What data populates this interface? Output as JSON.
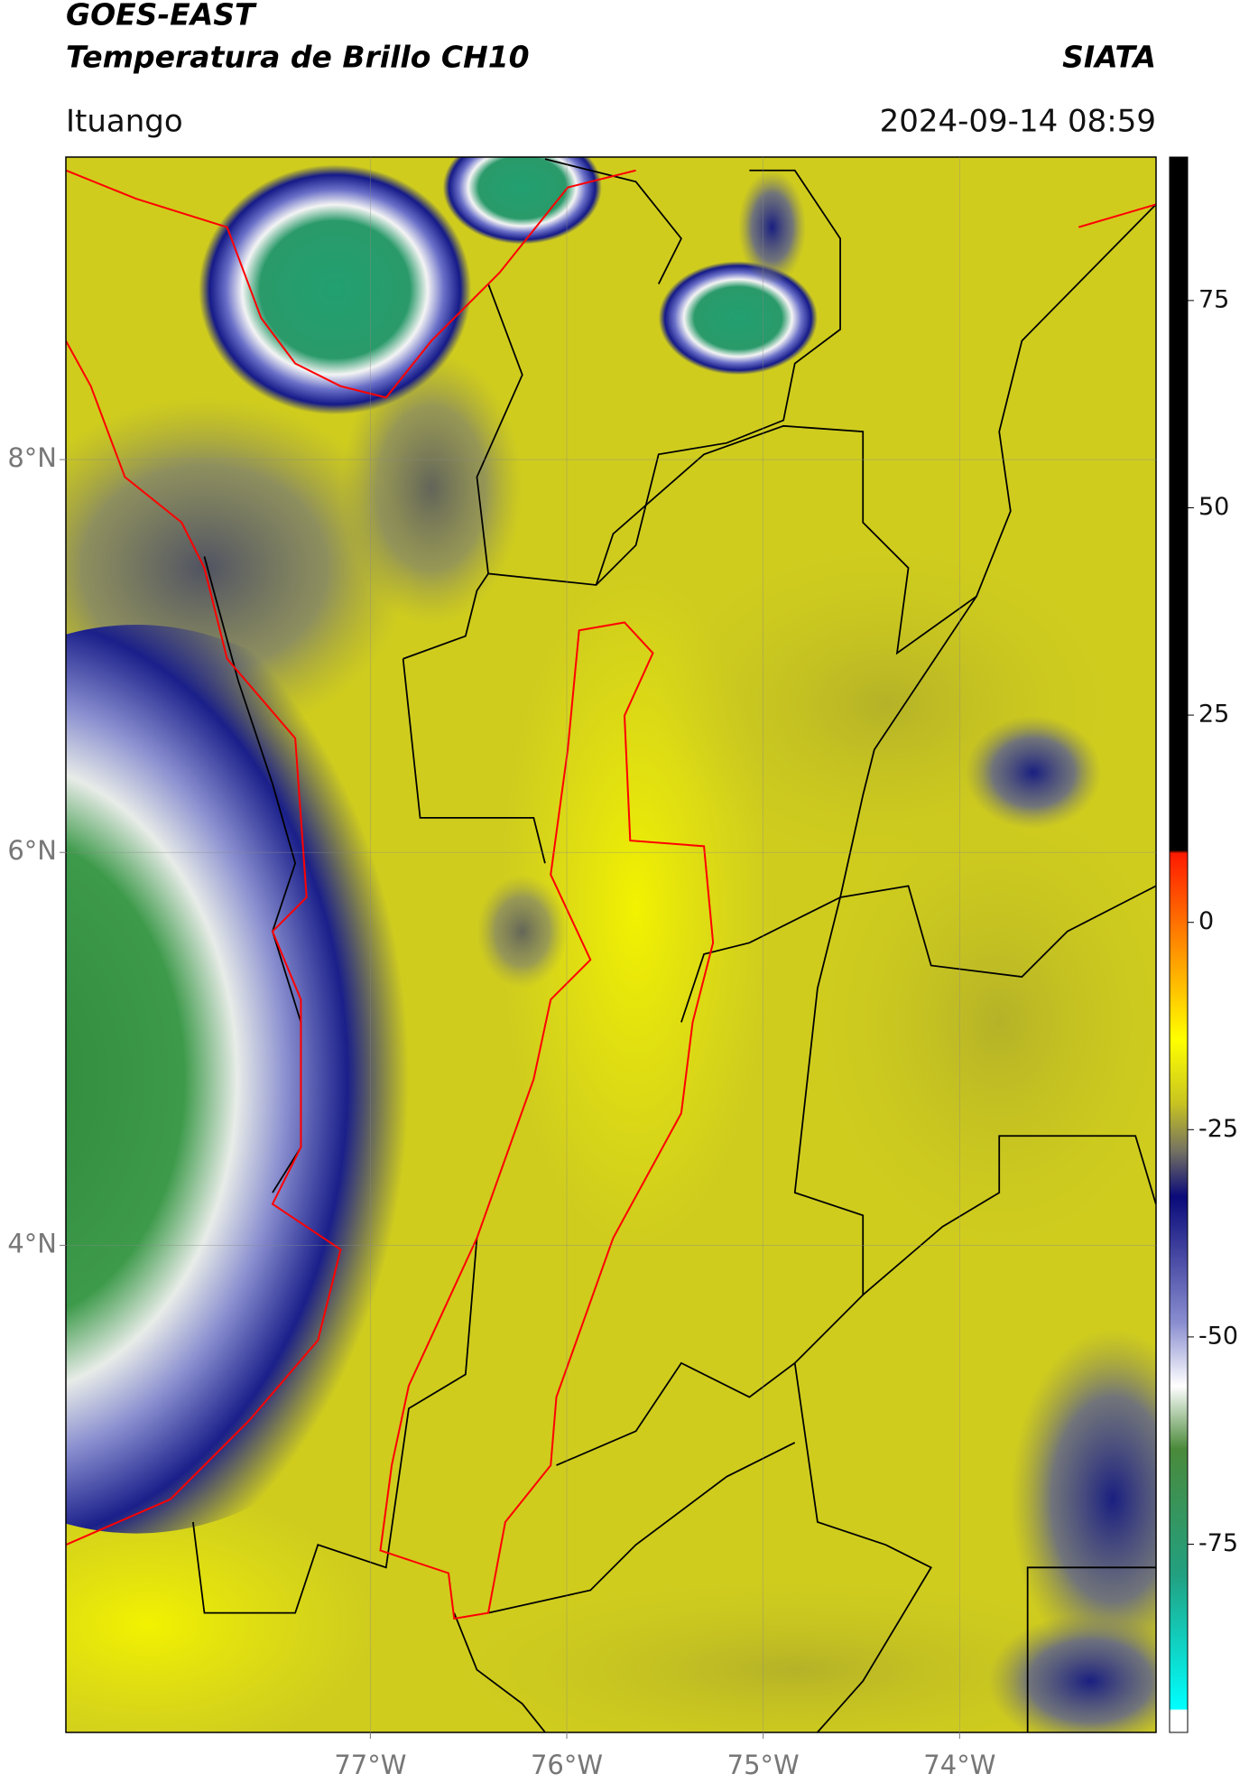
{
  "header": {
    "satellite": "GOES-EAST",
    "product": "Temperatura de Brillo CH10",
    "organization": "SIATA",
    "region": "Ituango",
    "timestamp": "2024-09-14 08:59"
  },
  "map": {
    "xlim": [
      -78.55,
      -73.0
    ],
    "ylim": [
      1.52,
      9.54
    ],
    "xticks": [
      {
        "value": -77,
        "label": "77°W"
      },
      {
        "value": -76,
        "label": "76°W"
      },
      {
        "value": -75,
        "label": "75°W"
      },
      {
        "value": -74,
        "label": "74°W"
      }
    ],
    "yticks": [
      {
        "value": 4,
        "label": "4°N"
      },
      {
        "value": 6,
        "label": "6°N"
      },
      {
        "value": 8,
        "label": "8°N"
      }
    ],
    "grid": true
  },
  "colorbar": {
    "lim": [
      -97.7,
      92.3
    ],
    "ticks": [
      -75,
      -50,
      -25,
      0,
      25,
      50,
      75
    ]
  }
}
